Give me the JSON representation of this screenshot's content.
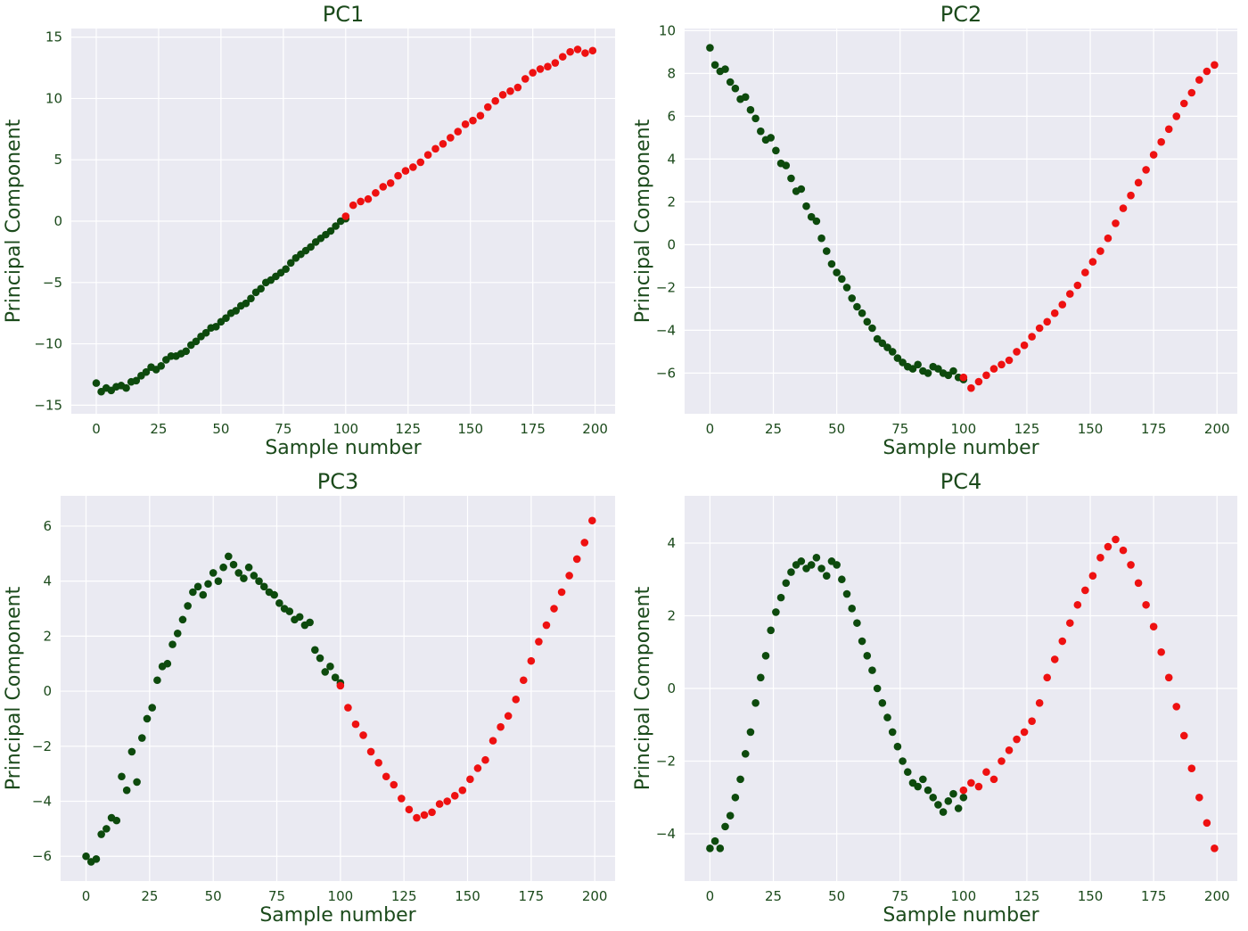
{
  "colors": {
    "green": "#0d4a0d",
    "red": "#ee1111",
    "panel_bg": "#eaeaf2",
    "grid": "#ffffff",
    "text": "#1b4a1b"
  },
  "chart_data": [
    {
      "type": "scatter",
      "title": "PC1",
      "xlabel": "Sample number",
      "ylabel": "Principal Component",
      "xlim": [
        -10,
        208
      ],
      "ylim": [
        -15.7,
        15.7
      ],
      "xticks": [
        0,
        25,
        50,
        75,
        100,
        125,
        150,
        175,
        200
      ],
      "yticks": [
        -15,
        -10,
        -5,
        0,
        5,
        10,
        15
      ],
      "grid": true,
      "series": [
        {
          "color": "green",
          "x": [
            0,
            2,
            4,
            6,
            8,
            10,
            12,
            14,
            16,
            18,
            20,
            22,
            24,
            26,
            28,
            30,
            32,
            34,
            36,
            38,
            40,
            42,
            44,
            46,
            48,
            50,
            52,
            54,
            56,
            58,
            60,
            62,
            64,
            66,
            68,
            70,
            72,
            74,
            76,
            78,
            80,
            82,
            84,
            86,
            88,
            90,
            92,
            94,
            96,
            98,
            100
          ],
          "y": [
            -13.2,
            -13.9,
            -13.6,
            -13.8,
            -13.5,
            -13.4,
            -13.6,
            -13.1,
            -13.0,
            -12.6,
            -12.3,
            -11.9,
            -12.1,
            -11.8,
            -11.3,
            -11.0,
            -11.0,
            -10.8,
            -10.6,
            -10.1,
            -9.8,
            -9.4,
            -9.1,
            -8.7,
            -8.6,
            -8.2,
            -7.9,
            -7.5,
            -7.3,
            -6.9,
            -6.7,
            -6.3,
            -5.8,
            -5.5,
            -5.0,
            -4.8,
            -4.5,
            -4.2,
            -3.9,
            -3.4,
            -3.0,
            -2.7,
            -2.4,
            -2.1,
            -1.7,
            -1.4,
            -1.1,
            -0.8,
            -0.4,
            0.0,
            0.2
          ]
        },
        {
          "color": "red",
          "x": [
            100,
            103,
            106,
            109,
            112,
            115,
            118,
            121,
            124,
            127,
            130,
            133,
            136,
            139,
            142,
            145,
            148,
            151,
            154,
            157,
            160,
            163,
            166,
            169,
            172,
            175,
            178,
            181,
            184,
            187,
            190,
            193,
            196,
            199
          ],
          "y": [
            0.4,
            1.3,
            1.6,
            1.8,
            2.3,
            2.8,
            3.1,
            3.7,
            4.1,
            4.4,
            4.8,
            5.4,
            5.9,
            6.3,
            6.8,
            7.3,
            7.9,
            8.2,
            8.6,
            9.3,
            9.8,
            10.3,
            10.6,
            10.9,
            11.6,
            12.1,
            12.4,
            12.6,
            12.9,
            13.4,
            13.8,
            14.0,
            13.7,
            13.9
          ]
        }
      ]
    },
    {
      "type": "scatter",
      "title": "PC2",
      "xlabel": "Sample number",
      "ylabel": "Principal Component",
      "xlim": [
        -10,
        208
      ],
      "ylim": [
        -7.9,
        10.1
      ],
      "xticks": [
        0,
        25,
        50,
        75,
        100,
        125,
        150,
        175,
        200
      ],
      "yticks": [
        -6,
        -4,
        -2,
        0,
        2,
        4,
        6,
        8,
        10
      ],
      "grid": true,
      "series": [
        {
          "color": "green",
          "x": [
            0,
            2,
            4,
            6,
            8,
            10,
            12,
            14,
            16,
            18,
            20,
            22,
            24,
            26,
            28,
            30,
            32,
            34,
            36,
            38,
            40,
            42,
            44,
            46,
            48,
            50,
            52,
            54,
            56,
            58,
            60,
            62,
            64,
            66,
            68,
            70,
            72,
            74,
            76,
            78,
            80,
            82,
            84,
            86,
            88,
            90,
            92,
            94,
            96,
            98,
            100
          ],
          "y": [
            9.2,
            8.4,
            8.1,
            8.2,
            7.6,
            7.3,
            6.8,
            6.9,
            6.3,
            5.9,
            5.3,
            4.9,
            5.0,
            4.4,
            3.8,
            3.7,
            3.1,
            2.5,
            2.6,
            1.8,
            1.3,
            1.1,
            0.3,
            -0.3,
            -0.9,
            -1.3,
            -1.6,
            -2.0,
            -2.5,
            -2.9,
            -3.2,
            -3.6,
            -3.9,
            -4.4,
            -4.6,
            -4.8,
            -5.0,
            -5.3,
            -5.5,
            -5.7,
            -5.8,
            -5.6,
            -5.9,
            -6.0,
            -5.7,
            -5.8,
            -6.0,
            -6.1,
            -5.9,
            -6.2,
            -6.3
          ]
        },
        {
          "color": "red",
          "x": [
            100,
            103,
            106,
            109,
            112,
            115,
            118,
            121,
            124,
            127,
            130,
            133,
            136,
            139,
            142,
            145,
            148,
            151,
            154,
            157,
            160,
            163,
            166,
            169,
            172,
            175,
            178,
            181,
            184,
            187,
            190,
            193,
            196,
            199
          ],
          "y": [
            -6.2,
            -6.7,
            -6.4,
            -6.1,
            -5.8,
            -5.6,
            -5.4,
            -5.0,
            -4.7,
            -4.3,
            -3.9,
            -3.6,
            -3.2,
            -2.8,
            -2.3,
            -1.9,
            -1.3,
            -0.8,
            -0.3,
            0.3,
            1.0,
            1.7,
            2.3,
            2.9,
            3.5,
            4.2,
            4.8,
            5.4,
            6.0,
            6.6,
            7.1,
            7.7,
            8.1,
            8.4
          ]
        }
      ]
    },
    {
      "type": "scatter",
      "title": "PC3",
      "xlabel": "Sample number",
      "ylabel": "Principal Component",
      "xlim": [
        -10,
        208
      ],
      "ylim": [
        -6.9,
        7.1
      ],
      "xticks": [
        0,
        25,
        50,
        75,
        100,
        125,
        150,
        175,
        200
      ],
      "yticks": [
        -6,
        -4,
        -2,
        0,
        2,
        4,
        6
      ],
      "grid": true,
      "series": [
        {
          "color": "green",
          "x": [
            0,
            2,
            4,
            6,
            8,
            10,
            12,
            14,
            16,
            18,
            20,
            22,
            24,
            26,
            28,
            30,
            32,
            34,
            36,
            38,
            40,
            42,
            44,
            46,
            48,
            50,
            52,
            54,
            56,
            58,
            60,
            62,
            64,
            66,
            68,
            70,
            72,
            74,
            76,
            78,
            80,
            82,
            84,
            86,
            88,
            90,
            92,
            94,
            96,
            98,
            100
          ],
          "y": [
            -6.0,
            -6.2,
            -6.1,
            -5.2,
            -5.0,
            -4.6,
            -4.7,
            -3.1,
            -3.6,
            -2.2,
            -3.3,
            -1.7,
            -1.0,
            -0.6,
            0.4,
            0.9,
            1.0,
            1.7,
            2.1,
            2.6,
            3.1,
            3.6,
            3.8,
            3.5,
            3.9,
            4.3,
            4.0,
            4.5,
            4.9,
            4.6,
            4.3,
            4.1,
            4.5,
            4.2,
            4.0,
            3.8,
            3.6,
            3.5,
            3.2,
            3.0,
            2.9,
            2.6,
            2.7,
            2.4,
            2.5,
            1.5,
            1.2,
            0.7,
            0.9,
            0.5,
            0.3
          ]
        },
        {
          "color": "red",
          "x": [
            100,
            103,
            106,
            109,
            112,
            115,
            118,
            121,
            124,
            127,
            130,
            133,
            136,
            139,
            142,
            145,
            148,
            151,
            154,
            157,
            160,
            163,
            166,
            169,
            172,
            175,
            178,
            181,
            184,
            187,
            190,
            193,
            196,
            199
          ],
          "y": [
            0.2,
            -0.6,
            -1.2,
            -1.6,
            -2.2,
            -2.6,
            -3.1,
            -3.4,
            -3.9,
            -4.3,
            -4.6,
            -4.5,
            -4.4,
            -4.1,
            -4.0,
            -3.8,
            -3.6,
            -3.2,
            -2.8,
            -2.5,
            -1.8,
            -1.3,
            -0.9,
            -0.3,
            0.4,
            1.1,
            1.8,
            2.4,
            3.0,
            3.6,
            4.2,
            4.8,
            5.4,
            6.2
          ]
        }
      ]
    },
    {
      "type": "scatter",
      "title": "PC4",
      "xlabel": "Sample number",
      "ylabel": "Principal Component",
      "xlim": [
        -10,
        208
      ],
      "ylim": [
        -5.3,
        5.3
      ],
      "xticks": [
        0,
        25,
        50,
        75,
        100,
        125,
        150,
        175,
        200
      ],
      "yticks": [
        -4,
        -2,
        0,
        2,
        4
      ],
      "grid": true,
      "series": [
        {
          "color": "green",
          "x": [
            0,
            2,
            4,
            6,
            8,
            10,
            12,
            14,
            16,
            18,
            20,
            22,
            24,
            26,
            28,
            30,
            32,
            34,
            36,
            38,
            40,
            42,
            44,
            46,
            48,
            50,
            52,
            54,
            56,
            58,
            60,
            62,
            64,
            66,
            68,
            70,
            72,
            74,
            76,
            78,
            80,
            82,
            84,
            86,
            88,
            90,
            92,
            94,
            96,
            98,
            100
          ],
          "y": [
            -4.4,
            -4.2,
            -4.4,
            -3.8,
            -3.5,
            -3.0,
            -2.5,
            -1.8,
            -1.2,
            -0.4,
            0.3,
            0.9,
            1.6,
            2.1,
            2.5,
            2.9,
            3.2,
            3.4,
            3.5,
            3.3,
            3.4,
            3.6,
            3.3,
            3.1,
            3.5,
            3.4,
            3.0,
            2.6,
            2.2,
            1.8,
            1.3,
            0.9,
            0.5,
            0.0,
            -0.4,
            -0.8,
            -1.2,
            -1.6,
            -2.0,
            -2.3,
            -2.6,
            -2.7,
            -2.5,
            -2.8,
            -3.0,
            -3.2,
            -3.4,
            -3.1,
            -2.9,
            -3.3,
            -3.0
          ]
        },
        {
          "color": "red",
          "x": [
            100,
            103,
            106,
            109,
            112,
            115,
            118,
            121,
            124,
            127,
            130,
            133,
            136,
            139,
            142,
            145,
            148,
            151,
            154,
            157,
            160,
            163,
            166,
            169,
            172,
            175,
            178,
            181,
            184,
            187,
            190,
            193,
            196,
            199
          ],
          "y": [
            -2.8,
            -2.6,
            -2.7,
            -2.3,
            -2.5,
            -2.0,
            -1.7,
            -1.4,
            -1.2,
            -0.9,
            -0.4,
            0.3,
            0.8,
            1.3,
            1.8,
            2.3,
            2.7,
            3.1,
            3.6,
            3.9,
            4.1,
            3.8,
            3.4,
            2.9,
            2.3,
            1.7,
            1.0,
            0.3,
            -0.5,
            -1.3,
            -2.2,
            -3.0,
            -3.7,
            -4.4
          ]
        }
      ]
    }
  ]
}
